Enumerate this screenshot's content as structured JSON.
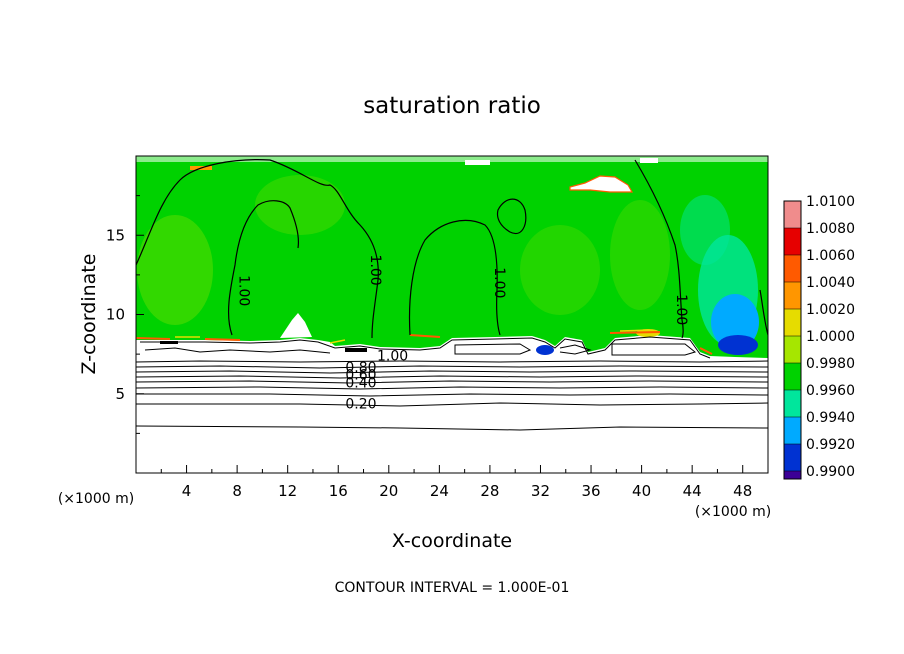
{
  "chart_data": {
    "type": "heatmap",
    "title": "saturation ratio",
    "xlabel": "X-coordinate",
    "ylabel": "Z-coordinate",
    "x_unit": "(×1000 m)",
    "z_unit": "(×1000 m)",
    "xlim": [
      0,
      50
    ],
    "ylim": [
      0,
      20
    ],
    "x_ticks": [
      "4",
      "8",
      "12",
      "16",
      "20",
      "24",
      "28",
      "32",
      "36",
      "40",
      "44",
      "48"
    ],
    "y_ticks": [
      "5",
      "10",
      "15"
    ],
    "footer": "CONTOUR INTERVAL = 1.000E-01",
    "colorbar": {
      "labels": [
        "1.0100",
        "1.0080",
        "1.0060",
        "1.0040",
        "1.0020",
        "1.0000",
        "0.9980",
        "0.9960",
        "0.9940",
        "0.9920",
        "0.9900"
      ],
      "colors": [
        "#f08c8c",
        "#e60000",
        "#ff5a00",
        "#ff9600",
        "#e6dc00",
        "#a6e600",
        "#00d200",
        "#00e69c",
        "#00aaff",
        "#0032d2",
        "#3c0096"
      ],
      "range": [
        0.99,
        1.01
      ]
    },
    "contour_labels": [
      {
        "text": "1.00",
        "x": 8.2,
        "z": 11.5
      },
      {
        "text": "1.00",
        "x": 18.6,
        "z": 12.8
      },
      {
        "text": "1.00",
        "x": 28.4,
        "z": 12.0
      },
      {
        "text": "1.00",
        "x": 42.8,
        "z": 10.3
      },
      {
        "text": "1.00",
        "x": 20.3,
        "z": 7.4
      },
      {
        "text": "0.80",
        "x": 17.8,
        "z": 6.7
      },
      {
        "text": "0.60",
        "x": 17.8,
        "z": 6.2
      },
      {
        "text": "0.40",
        "x": 17.8,
        "z": 5.7
      },
      {
        "text": "0.20",
        "x": 17.8,
        "z": 4.4
      }
    ],
    "contour_levels_below_cloud": [
      {
        "value": 0.9,
        "z": 7.2
      },
      {
        "value": 0.8,
        "z": 6.8
      },
      {
        "value": 0.7,
        "z": 6.5
      },
      {
        "value": 0.6,
        "z": 6.2
      },
      {
        "value": 0.5,
        "z": 5.9
      },
      {
        "value": 0.4,
        "z": 5.6
      },
      {
        "value": 0.3,
        "z": 5.1
      },
      {
        "value": 0.2,
        "z": 4.4
      },
      {
        "value": 0.1,
        "z": 2.9
      }
    ]
  }
}
